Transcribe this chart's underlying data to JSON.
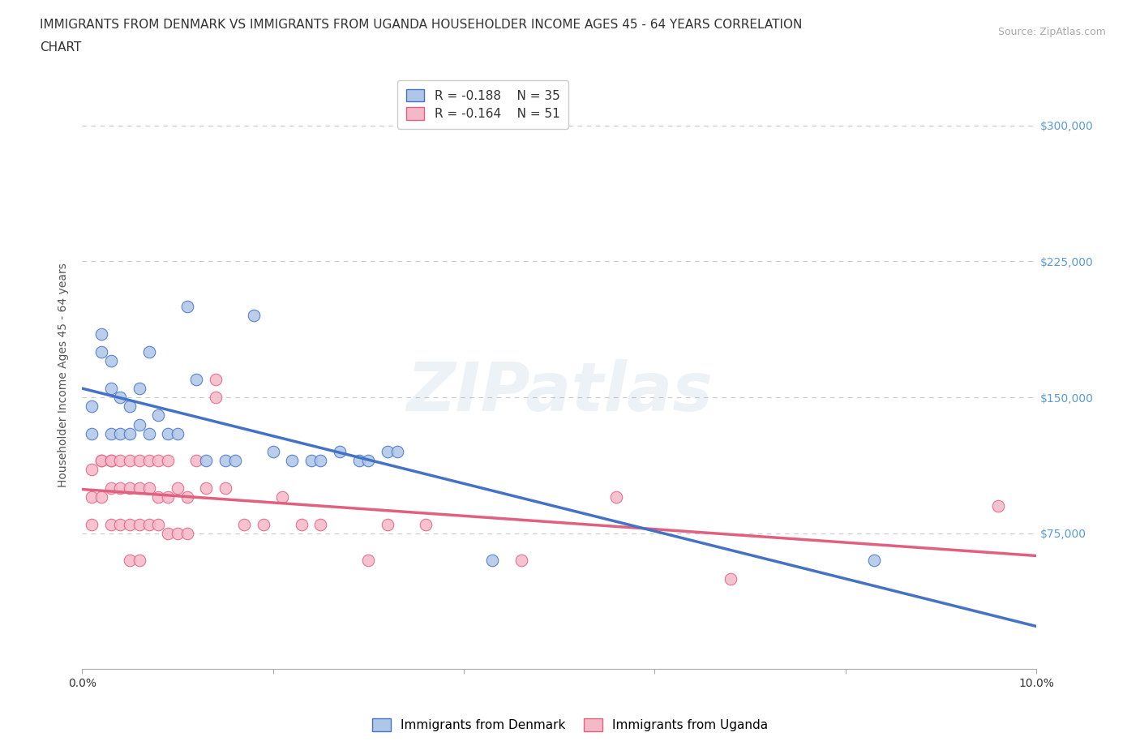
{
  "title_line1": "IMMIGRANTS FROM DENMARK VS IMMIGRANTS FROM UGANDA HOUSEHOLDER INCOME AGES 45 - 64 YEARS CORRELATION",
  "title_line2": "CHART",
  "source": "Source: ZipAtlas.com",
  "ylabel": "Householder Income Ages 45 - 64 years",
  "xlim": [
    0.0,
    0.1
  ],
  "ylim": [
    0,
    325000
  ],
  "yticks": [
    75000,
    150000,
    225000,
    300000
  ],
  "ytick_labels": [
    "$75,000",
    "$150,000",
    "$225,000",
    "$300,000"
  ],
  "xticks": [
    0.0,
    0.02,
    0.04,
    0.06,
    0.08,
    0.1
  ],
  "xtick_labels": [
    "0.0%",
    "",
    "",
    "",
    "",
    "10.0%"
  ],
  "denmark_R": -0.188,
  "denmark_N": 35,
  "uganda_R": -0.164,
  "uganda_N": 51,
  "denmark_color": "#aec6e8",
  "uganda_color": "#f5b8c8",
  "denmark_line_color": "#4472c4",
  "uganda_line_color": "#e06080",
  "background_color": "#ffffff",
  "grid_color": "#c8c8c8",
  "denmark_x": [
    0.001,
    0.001,
    0.002,
    0.002,
    0.003,
    0.003,
    0.003,
    0.004,
    0.004,
    0.005,
    0.005,
    0.006,
    0.006,
    0.007,
    0.007,
    0.008,
    0.009,
    0.01,
    0.011,
    0.012,
    0.013,
    0.015,
    0.016,
    0.018,
    0.02,
    0.022,
    0.024,
    0.025,
    0.027,
    0.029,
    0.03,
    0.032,
    0.033,
    0.043,
    0.083
  ],
  "denmark_y": [
    130000,
    145000,
    175000,
    185000,
    130000,
    155000,
    170000,
    130000,
    150000,
    130000,
    145000,
    135000,
    155000,
    130000,
    175000,
    140000,
    130000,
    130000,
    200000,
    160000,
    115000,
    115000,
    115000,
    195000,
    120000,
    115000,
    115000,
    115000,
    120000,
    115000,
    115000,
    120000,
    120000,
    60000,
    60000
  ],
  "uganda_x": [
    0.001,
    0.001,
    0.001,
    0.002,
    0.002,
    0.002,
    0.003,
    0.003,
    0.003,
    0.003,
    0.004,
    0.004,
    0.004,
    0.005,
    0.005,
    0.005,
    0.005,
    0.006,
    0.006,
    0.006,
    0.006,
    0.007,
    0.007,
    0.007,
    0.008,
    0.008,
    0.008,
    0.009,
    0.009,
    0.009,
    0.01,
    0.01,
    0.011,
    0.011,
    0.012,
    0.013,
    0.014,
    0.014,
    0.015,
    0.017,
    0.019,
    0.021,
    0.023,
    0.025,
    0.03,
    0.032,
    0.036,
    0.046,
    0.056,
    0.068,
    0.096
  ],
  "uganda_y": [
    110000,
    95000,
    80000,
    115000,
    95000,
    115000,
    115000,
    100000,
    115000,
    80000,
    115000,
    100000,
    80000,
    115000,
    100000,
    80000,
    60000,
    115000,
    100000,
    80000,
    60000,
    115000,
    100000,
    80000,
    115000,
    95000,
    80000,
    115000,
    95000,
    75000,
    100000,
    75000,
    95000,
    75000,
    115000,
    100000,
    150000,
    160000,
    100000,
    80000,
    80000,
    95000,
    80000,
    80000,
    60000,
    80000,
    80000,
    60000,
    95000,
    50000,
    90000
  ],
  "watermark": "ZIPatlas",
  "title_fontsize": 11,
  "axis_label_fontsize": 10,
  "tick_fontsize": 10,
  "legend_fontsize": 11
}
